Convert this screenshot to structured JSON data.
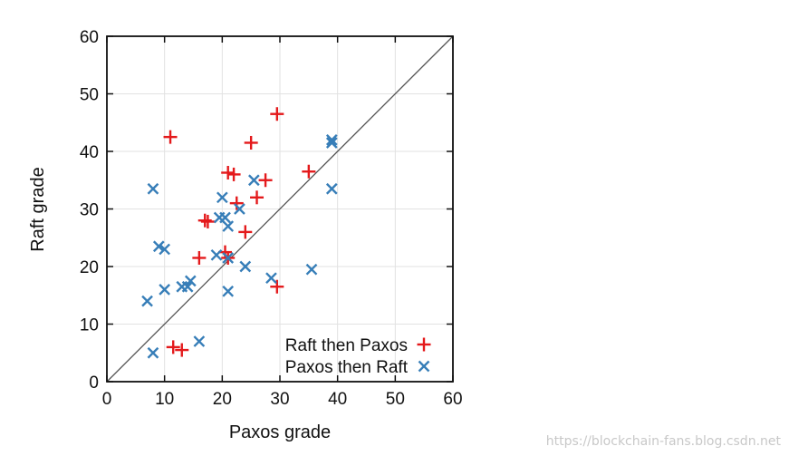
{
  "chart_data": {
    "type": "scatter",
    "title": "",
    "xlabel": "Paxos grade",
    "ylabel": "Raft grade",
    "xlim": [
      0,
      60
    ],
    "ylim": [
      0,
      60
    ],
    "xticks": [
      "0",
      "10",
      "20",
      "30",
      "40",
      "50",
      "60"
    ],
    "yticks": [
      "0",
      "10",
      "20",
      "30",
      "40",
      "50",
      "60"
    ],
    "grid": true,
    "diagonal_reference_line": true,
    "legend_position": "bottom-right",
    "series": [
      {
        "name": "Raft then Paxos",
        "marker": "plus",
        "color": "#e41a1c",
        "points": [
          [
            11,
            42.5
          ],
          [
            25,
            41.5
          ],
          [
            29.5,
            46.5
          ],
          [
            21,
            36.3
          ],
          [
            22,
            36
          ],
          [
            27.5,
            35
          ],
          [
            35,
            36.5
          ],
          [
            22.5,
            31
          ],
          [
            26,
            32
          ],
          [
            17,
            28
          ],
          [
            17.5,
            27.8
          ],
          [
            24,
            26
          ],
          [
            20.5,
            22.5
          ],
          [
            16,
            21.5
          ],
          [
            21,
            21.5
          ],
          [
            29.5,
            16.5
          ],
          [
            11.5,
            6
          ],
          [
            13,
            5.5
          ]
        ]
      },
      {
        "name": "Paxos then Raft",
        "marker": "cross",
        "color": "#377eb8",
        "points": [
          [
            8,
            33.5
          ],
          [
            20,
            32
          ],
          [
            25.5,
            35
          ],
          [
            39,
            42
          ],
          [
            39,
            41.5
          ],
          [
            39,
            33.5
          ],
          [
            23,
            30
          ],
          [
            19.5,
            28.5
          ],
          [
            20.5,
            28.5
          ],
          [
            21,
            27
          ],
          [
            9,
            23.5
          ],
          [
            10,
            23
          ],
          [
            19,
            22
          ],
          [
            21,
            21.5
          ],
          [
            24,
            20
          ],
          [
            35.5,
            19.5
          ],
          [
            28.5,
            18
          ],
          [
            14.5,
            17.5
          ],
          [
            13,
            16.5
          ],
          [
            14,
            16.5
          ],
          [
            10,
            16
          ],
          [
            21,
            15.7
          ],
          [
            7,
            14
          ],
          [
            16,
            7
          ],
          [
            8,
            5
          ]
        ]
      }
    ]
  },
  "watermark": "https://blockchain-fans.blog.csdn.net"
}
